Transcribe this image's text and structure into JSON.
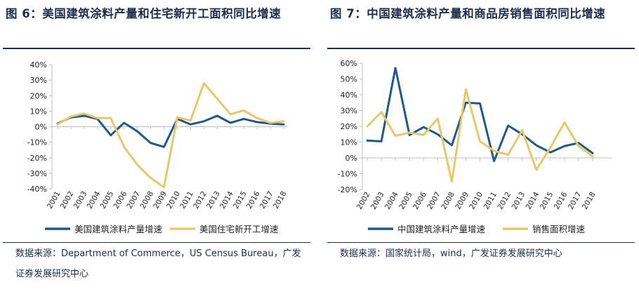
{
  "left": {
    "title": "图 6：美国建筑涂料产量和住宅新开工面积同比增速",
    "source": "数据来源：Department of Commerce，US Census Bureau，广发证券发展研究中心"
  },
  "right": {
    "title": "图 7：中国建筑涂料产量和商品房销售面积同比增速",
    "source": "数据来源：国家统计局，wind，广发证券发展研究中心"
  },
  "colors": {
    "series1": "#1f5a8a",
    "series2": "#e6c86a",
    "axis": "#bfbfbf",
    "text": "#1f2d4d"
  },
  "chart_data": [
    {
      "type": "line",
      "title": "图 6：美国建筑涂料产量和住宅新开工面积同比增速",
      "categories": [
        "2001",
        "2002",
        "2003",
        "2004",
        "2005",
        "2006",
        "2007",
        "2008",
        "2009",
        "2010",
        "2011",
        "2012",
        "2013",
        "2014",
        "2015",
        "2016",
        "2017",
        "2018"
      ],
      "yticks": [
        "40%",
        "30%",
        "20%",
        "10%",
        "0%",
        "-10%",
        "-20%",
        "-30%",
        "-40%"
      ],
      "ylim": [
        -40,
        40
      ],
      "ystep": 10,
      "grid": false,
      "legend_position": "bottom",
      "series": [
        {
          "name": "美国建筑涂料产量增速",
          "values": [
            2,
            6,
            7,
            5,
            -5.5,
            2.5,
            -3,
            -10.5,
            -13,
            5,
            1.5,
            3.5,
            7,
            2.5,
            5,
            3,
            2,
            1.5
          ]
        },
        {
          "name": "美国住宅新开工增速",
          "values": [
            1.5,
            6.5,
            8.5,
            5.5,
            5.5,
            -13,
            -24.5,
            -33,
            -39,
            6,
            4,
            28,
            18,
            8,
            10.5,
            5.5,
            2.5,
            3.5
          ]
        }
      ]
    },
    {
      "type": "line",
      "title": "图 7：中国建筑涂料产量和商品房销售面积同比增速",
      "categories": [
        "2002",
        "2003",
        "2004",
        "2005",
        "2006",
        "2007",
        "2008",
        "2009",
        "2010",
        "2011",
        "2012",
        "2013",
        "2014",
        "2015",
        "2016",
        "2017",
        "2018"
      ],
      "yticks": [
        "60%",
        "50%",
        "40%",
        "30%",
        "20%",
        "10%",
        "0%",
        "-10%",
        "-20%"
      ],
      "ylim": [
        -20,
        60
      ],
      "ystep": 10,
      "grid": false,
      "legend_position": "bottom",
      "series": [
        {
          "name": "中国建筑涂料产量增速",
          "values": [
            11,
            10.5,
            57,
            14.5,
            19.5,
            15,
            8,
            35,
            34.5,
            -2,
            20.5,
            15,
            8,
            3.5,
            7.5,
            9.5,
            3
          ]
        },
        {
          "name": "销售面积增速",
          "values": [
            20,
            29,
            14,
            16,
            14.5,
            25,
            -15,
            43.5,
            10.5,
            4.5,
            2,
            17.5,
            -7.5,
            6.5,
            22.5,
            7.5,
            1
          ]
        }
      ]
    }
  ]
}
